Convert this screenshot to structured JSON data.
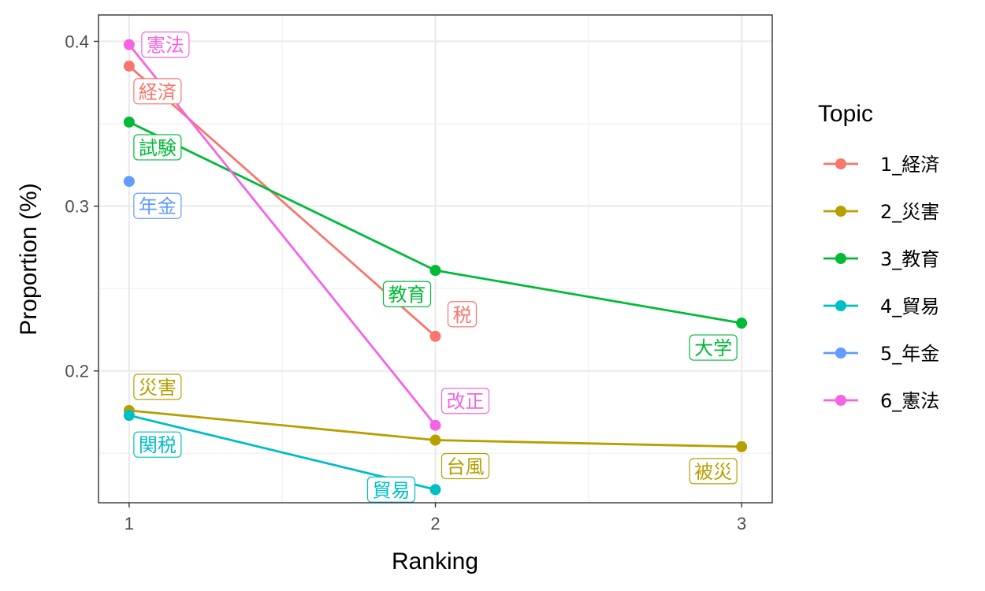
{
  "chart_data": {
    "type": "line",
    "title": "",
    "xlabel": "Ranking",
    "ylabel": "Proportion (%)",
    "x_ticks": [
      "1",
      "2",
      "3"
    ],
    "y_ticks": [
      "0.2",
      "0.3",
      "0.4"
    ],
    "xlim": [
      0.9,
      3.1
    ],
    "ylim": [
      0.12,
      0.416
    ],
    "grid": true,
    "legend": {
      "title": "Topic",
      "position": "right"
    },
    "series": [
      {
        "name": "1_経済",
        "color": "#F8766D",
        "points": [
          {
            "x": 1,
            "y": 0.385,
            "label": "経済"
          },
          {
            "x": 2,
            "y": 0.221,
            "label": "税"
          }
        ]
      },
      {
        "name": "2_災害",
        "color": "#B79F00",
        "points": [
          {
            "x": 1,
            "y": 0.176,
            "label": "災害"
          },
          {
            "x": 2,
            "y": 0.158,
            "label": "台風"
          },
          {
            "x": 3,
            "y": 0.154,
            "label": "被災"
          }
        ]
      },
      {
        "name": "3_教育",
        "color": "#00BA38",
        "points": [
          {
            "x": 1,
            "y": 0.351,
            "label": "試験"
          },
          {
            "x": 2,
            "y": 0.261,
            "label": "教育"
          },
          {
            "x": 3,
            "y": 0.229,
            "label": "大学"
          }
        ]
      },
      {
        "name": "4_貿易",
        "color": "#00BFC4",
        "points": [
          {
            "x": 1,
            "y": 0.173,
            "label": "関税"
          },
          {
            "x": 2,
            "y": 0.128,
            "label": "貿易"
          }
        ]
      },
      {
        "name": "5_年金",
        "color": "#619CFF",
        "points": [
          {
            "x": 1,
            "y": 0.315,
            "label": "年金"
          }
        ]
      },
      {
        "name": "6_憲法",
        "color": "#F564E3",
        "points": [
          {
            "x": 1,
            "y": 0.398,
            "label": "憲法"
          },
          {
            "x": 2,
            "y": 0.167,
            "label": "改正"
          }
        ]
      }
    ]
  }
}
